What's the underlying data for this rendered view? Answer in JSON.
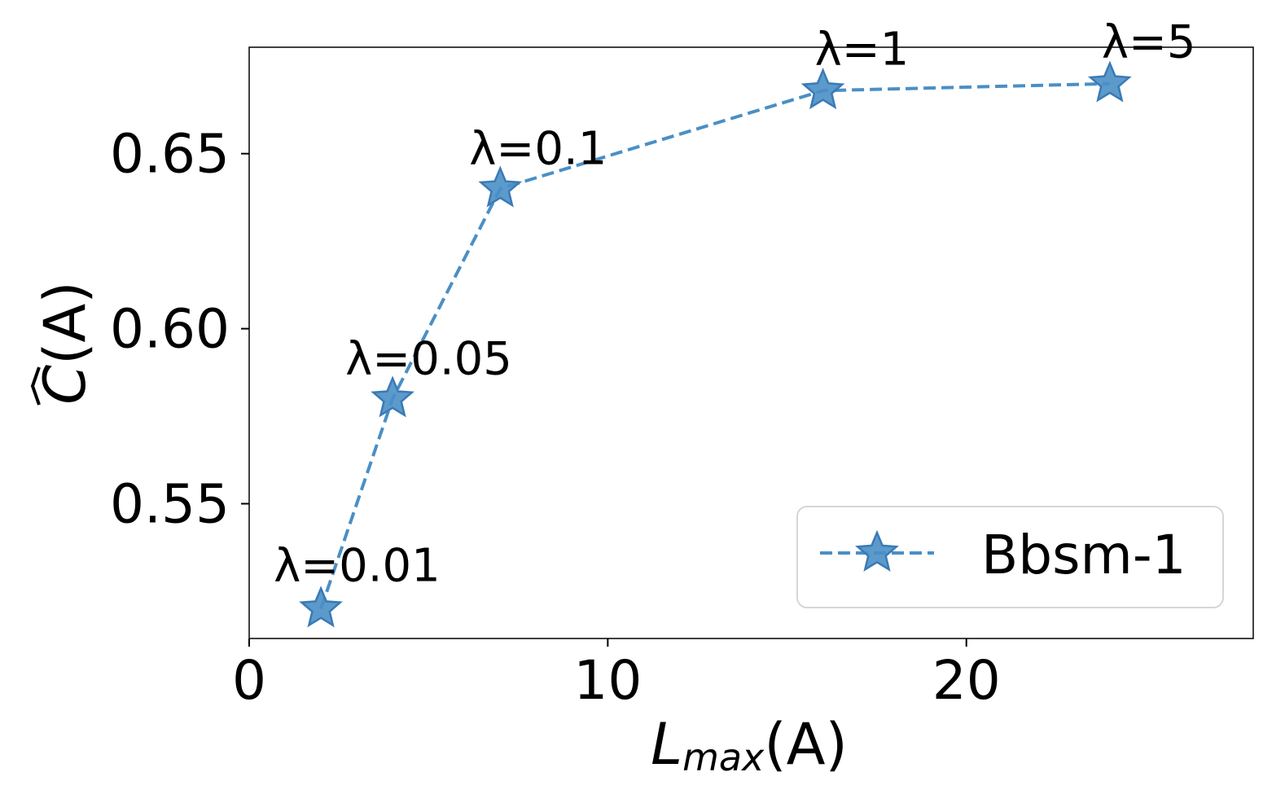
{
  "chart_data": {
    "type": "line",
    "title": "",
    "xlabel": {
      "base": "L",
      "sub": "max",
      "rest": "(A)"
    },
    "ylabel": {
      "hat": "C",
      "rest": "(A)"
    },
    "xlim": [
      0,
      28
    ],
    "ylim": [
      0.5115,
      0.6804
    ],
    "xticks": [
      0,
      10,
      20
    ],
    "xtick_labels": [
      "0",
      "10",
      "20"
    ],
    "yticks": [
      0.55,
      0.6,
      0.65
    ],
    "ytick_labels": [
      "0.55",
      "0.60",
      "0.65"
    ],
    "grid": false,
    "legend_position": "bottom-right",
    "series": [
      {
        "name": "Bbsm-1",
        "color": "#4a8fc5",
        "line_style": "dashed",
        "marker": "star",
        "x": [
          2,
          4,
          7,
          16,
          24
        ],
        "y": [
          0.52,
          0.58,
          0.64,
          0.668,
          0.67
        ],
        "annotations": [
          "λ=0.01",
          "λ=0.05",
          "λ=0.1",
          "λ=1",
          "λ=5"
        ]
      }
    ]
  }
}
